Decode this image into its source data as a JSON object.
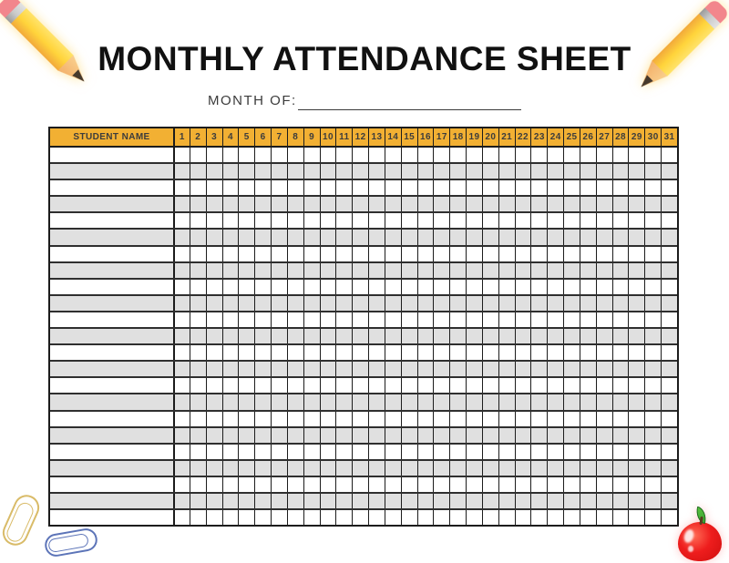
{
  "header": {
    "title": "MONTHLY ATTENDANCE SHEET"
  },
  "month": {
    "label": "MONTH OF:",
    "value": ""
  },
  "table": {
    "student_name_header": "STUDENT NAME",
    "day_headers": [
      1,
      2,
      3,
      4,
      5,
      6,
      7,
      8,
      9,
      10,
      11,
      12,
      13,
      14,
      15,
      16,
      17,
      18,
      19,
      20,
      21,
      22,
      23,
      24,
      25,
      26,
      27,
      28,
      29,
      30,
      31
    ],
    "data_rows": 23,
    "cell_value": ""
  },
  "decorations": {
    "pencil_left": "pencil-icon",
    "pencil_right": "pencil-icon",
    "paperclip_tan": "paperclip-icon",
    "paperclip_blue": "paperclip-icon",
    "apple": "apple-icon"
  },
  "colors": {
    "title-text": "#111111",
    "header-bg": "#F2B033",
    "header-text": "#3C3C3C",
    "row-alt": "#E0E0E0",
    "border-dark": "#1C1C1C",
    "row-line": "#2F2F2F",
    "month-text": "#3B3B3B",
    "pencil-body": "#FFD43B",
    "pencil-body-light": "#FFE36A",
    "pencil-body-dark": "#F2A93B",
    "pencil-eraser": "#F2868C",
    "pencil-ferrule": "#C9C9C9",
    "pencil-wood": "#F3B06A",
    "pencil-graphite": "#46392C",
    "paperclip-tan": "#D9BB68",
    "paperclip-blue": "#5C74B8",
    "apple-red": "#EE1D1D",
    "apple-leaf": "#3BA032"
  }
}
